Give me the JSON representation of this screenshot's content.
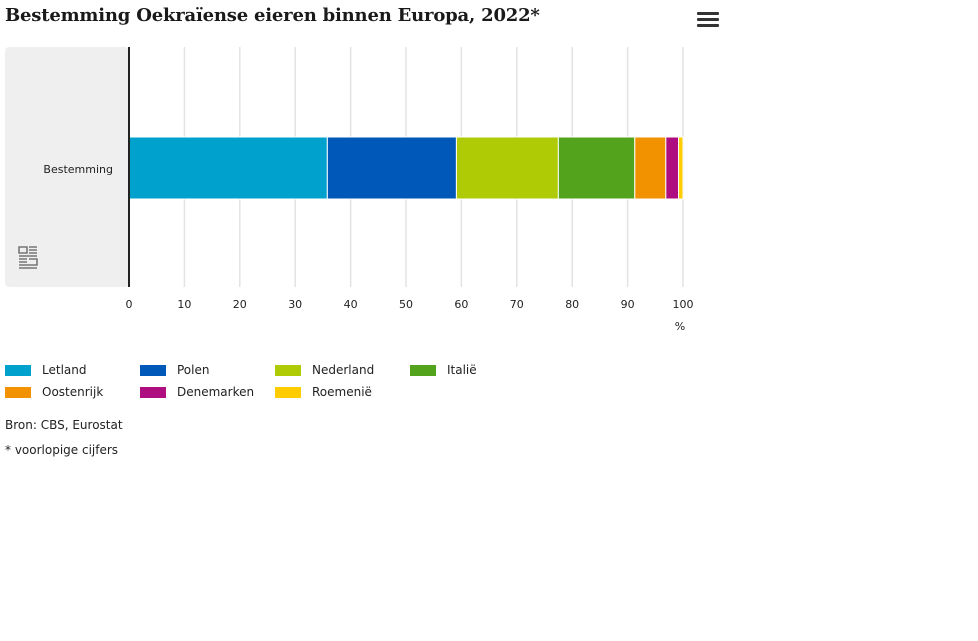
{
  "title": "Bestemming Oekraïense eieren binnen Europa, 2022*",
  "menu_icon": "hamburger-menu-icon",
  "logo_icon": "cbs-logo-icon",
  "chart_data": {
    "type": "bar",
    "orientation": "horizontal",
    "stacked": true,
    "categories": [
      "Bestemming"
    ],
    "series": [
      {
        "name": "Letland",
        "values": [
          35.8
        ],
        "color": "#00a1cd"
      },
      {
        "name": "Polen",
        "values": [
          23.3
        ],
        "color": "#0058b8"
      },
      {
        "name": "Nederland",
        "values": [
          18.4
        ],
        "color": "#afcb05"
      },
      {
        "name": "Italië",
        "values": [
          13.8
        ],
        "color": "#53a31d"
      },
      {
        "name": "Oostenrijk",
        "values": [
          5.6
        ],
        "color": "#f39200"
      },
      {
        "name": "Denemarken",
        "values": [
          2.3
        ],
        "color": "#af0e80"
      },
      {
        "name": "Roemenië",
        "values": [
          0.8
        ],
        "color": "#ffcc00"
      }
    ],
    "xlim": [
      0,
      100
    ],
    "xticks": [
      0,
      10,
      20,
      30,
      40,
      50,
      60,
      70,
      80,
      90,
      100
    ],
    "xlabel": "%",
    "grid": true
  },
  "source": "Bron: CBS, Eurostat",
  "note": "* voorlopige cijfers"
}
